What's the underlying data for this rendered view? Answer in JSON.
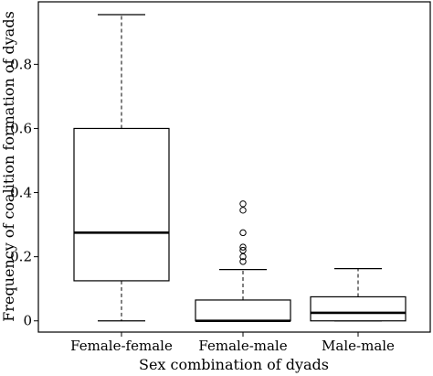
{
  "chart_data": {
    "type": "box",
    "xlabel": "Sex combination of dyads",
    "ylabel": "Frequency of coalition formation of dyads",
    "ylim": [
      -0.035,
      0.995
    ],
    "yticks": [
      0,
      0.2,
      0.4,
      0.6,
      0.8
    ],
    "ytick_labels": [
      "0",
      "0.2",
      "0.4",
      "0.6",
      "0.8"
    ],
    "grid": false,
    "categories": [
      "Female-female",
      "Female-male",
      "Male-male"
    ],
    "boxes": [
      {
        "category": "Female-female",
        "whisker_low": 0,
        "q1": 0.125,
        "median": 0.275,
        "q3": 0.6,
        "whisker_high": 0.955,
        "outliers": []
      },
      {
        "category": "Female-male",
        "whisker_low": 0,
        "q1": 0,
        "median": 0,
        "q3": 0.065,
        "whisker_high": 0.16,
        "outliers": [
          0.185,
          0.2,
          0.22,
          0.23,
          0.275,
          0.345,
          0.365
        ]
      },
      {
        "category": "Male-male",
        "whisker_low": 0,
        "q1": 0,
        "median": 0.025,
        "q3": 0.075,
        "whisker_high": 0.163,
        "outliers": []
      }
    ]
  }
}
